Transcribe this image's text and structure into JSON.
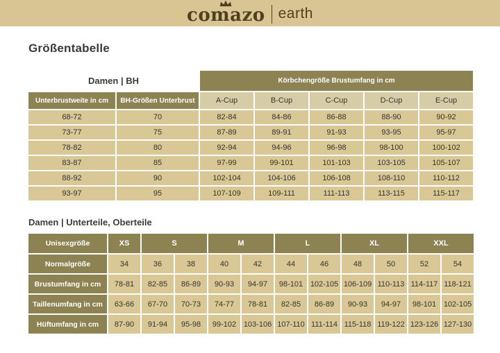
{
  "topbar": {
    "logo_primary": "comazo",
    "logo_secondary": "earth",
    "crown_icon": "crown-icon",
    "bg_color": "#d9c493",
    "text_color": "#50401f"
  },
  "page": {
    "title": "Größentabelle"
  },
  "colors": {
    "olive_header": "#8d8251",
    "data_cell": "#d9c795",
    "cup_header_cell": "#d6cda7",
    "topbar": "#d9c493",
    "text_dark": "#35342f",
    "header_text": "#ffffff"
  },
  "bh_table": {
    "section_title": "Damen | BH",
    "span_header": "Körbchengröße Brustumfang in cm",
    "col_headers_olive": [
      "Unterbrustweite in cm",
      "BH-Größen Unterbrust"
    ],
    "cup_headers": [
      "A-Cup",
      "B-Cup",
      "C-Cup",
      "D-Cup",
      "E-Cup"
    ],
    "rows": [
      [
        "68-72",
        "70",
        "82-84",
        "84-86",
        "86-88",
        "88-90",
        "90-92"
      ],
      [
        "73-77",
        "75",
        "87-89",
        "89-91",
        "91-93",
        "93-95",
        "95-97"
      ],
      [
        "78-82",
        "80",
        "92-94",
        "94-96",
        "96-98",
        "98-100",
        "100-102"
      ],
      [
        "83-87",
        "85",
        "97-99",
        "99-101",
        "101-103",
        "103-105",
        "105-107"
      ],
      [
        "88-92",
        "90",
        "102-104",
        "104-106",
        "106-108",
        "108-110",
        "110-112"
      ],
      [
        "93-97",
        "95",
        "107-109",
        "109-111",
        "111-113",
        "113-115",
        "115-117"
      ]
    ]
  },
  "body_table": {
    "section_title": "Damen | Unterteile, Oberteile",
    "header_label": "Unisexgröße",
    "size_groups": [
      {
        "label": "XS",
        "span": 1
      },
      {
        "label": "S",
        "span": 2
      },
      {
        "label": "M",
        "span": 2
      },
      {
        "label": "L",
        "span": 2
      },
      {
        "label": "XL",
        "span": 2
      },
      {
        "label": "XXL",
        "span": 2
      }
    ],
    "rows": [
      {
        "label": "Normalgröße",
        "values": [
          "34",
          "36",
          "38",
          "40",
          "42",
          "44",
          "46",
          "48",
          "50",
          "52",
          "54"
        ]
      },
      {
        "label": "Brustumfang in cm",
        "values": [
          "78-81",
          "82-85",
          "86-89",
          "90-93",
          "94-97",
          "98-101",
          "102-105",
          "106-109",
          "110-113",
          "114-117",
          "118-121"
        ]
      },
      {
        "label": "Taillenumfang in cm",
        "values": [
          "63-66",
          "67-70",
          "70-73",
          "74-77",
          "78-81",
          "82-85",
          "86-89",
          "90-93",
          "94-97",
          "98-101",
          "102-105"
        ]
      },
      {
        "label": "Hüftumfang in cm",
        "values": [
          "87-90",
          "91-94",
          "95-98",
          "99-102",
          "103-106",
          "107-110",
          "111-114",
          "115-118",
          "119-122",
          "123-126",
          "127-130"
        ]
      }
    ]
  }
}
